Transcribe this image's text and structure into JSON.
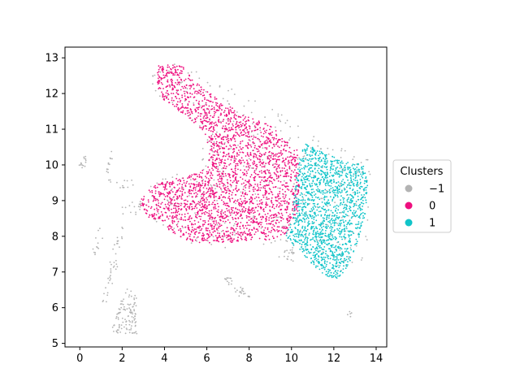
{
  "chart_data": {
    "type": "scatter",
    "title": "",
    "xlabel": "",
    "ylabel": "",
    "xlim": [
      -0.7,
      14.5
    ],
    "ylim": [
      4.9,
      13.3
    ],
    "xticks": [
      0,
      2,
      4,
      6,
      8,
      10,
      12,
      14
    ],
    "yticks": [
      5,
      6,
      7,
      8,
      9,
      10,
      11,
      12,
      13
    ],
    "grid": false,
    "legend": {
      "title": "Clusters",
      "placement": "center-right outside",
      "entries": [
        {
          "label": "−1",
          "color": "#b3b3b3"
        },
        {
          "label": "0",
          "color": "#ee0f7f"
        },
        {
          "label": "1",
          "color": "#10c4c9"
        }
      ]
    },
    "series": [
      {
        "name": "−1",
        "color": "#b3b3b3",
        "regions": [
          {
            "polygon": [
              [
                4.5,
                12.9
              ],
              [
                5.6,
                12.6
              ],
              [
                6.9,
                12.3
              ],
              [
                8.3,
                11.8
              ],
              [
                9.5,
                11.5
              ],
              [
                10.2,
                11.3
              ],
              [
                10.8,
                10.9
              ],
              [
                11.8,
                10.7
              ],
              [
                13,
                10.4
              ],
              [
                13.7,
                10.2
              ],
              [
                13.8,
                9.8
              ],
              [
                13.7,
                7.8
              ],
              [
                13.3,
                7.1
              ],
              [
                12.6,
                6.7
              ],
              [
                12.2,
                6.9
              ],
              [
                11.6,
                7.2
              ],
              [
                10.6,
                7.4
              ],
              [
                9.6,
                7.6
              ],
              [
                8.7,
                7.7
              ],
              [
                7.6,
                7.6
              ],
              [
                6.5,
                7.6
              ],
              [
                5.4,
                7.7
              ],
              [
                4.7,
                7.9
              ],
              [
                4.0,
                8.2
              ],
              [
                3.4,
                8.5
              ],
              [
                2.9,
                8.6
              ],
              [
                2.5,
                8.7
              ],
              [
                2.4,
                9.0
              ],
              [
                2.9,
                9.3
              ],
              [
                3.6,
                9.6
              ],
              [
                4.4,
                9.8
              ],
              [
                5.3,
                9.9
              ],
              [
                5.8,
                10.4
              ],
              [
                5.7,
                10.9
              ],
              [
                5.1,
                11.3
              ],
              [
                4.3,
                11.7
              ],
              [
                3.6,
                12.0
              ],
              [
                3.2,
                12.3
              ],
              [
                3.5,
                12.7
              ]
            ],
            "n": 420
          },
          {
            "polygon": [
              [
                -0.1,
                9.9
              ],
              [
                0.1,
                10.3
              ],
              [
                0.4,
                10.2
              ],
              [
                0.2,
                9.9
              ]
            ],
            "n": 14
          },
          {
            "polygon": [
              [
                1.2,
                9.7
              ],
              [
                1.5,
                10.4
              ],
              [
                1.6,
                10.2
              ],
              [
                1.4,
                9.7
              ]
            ],
            "n": 12
          },
          {
            "polygon": [
              [
                1.2,
                9.6
              ],
              [
                2.5,
                9.6
              ],
              [
                2.6,
                9.3
              ],
              [
                1.3,
                9.4
              ]
            ],
            "n": 14
          },
          {
            "polygon": [
              [
                2.0,
                9.0
              ],
              [
                3.0,
                9.0
              ],
              [
                3.0,
                8.5
              ],
              [
                2.0,
                8.6
              ]
            ],
            "n": 16
          },
          {
            "polygon": [
              [
                0.6,
                7.6
              ],
              [
                0.9,
                8.3
              ],
              [
                1.1,
                8.0
              ],
              [
                0.8,
                7.4
              ]
            ],
            "n": 12
          },
          {
            "polygon": [
              [
                1.0,
                6.1
              ],
              [
                1.6,
                7.8
              ],
              [
                2.2,
                8.6
              ],
              [
                2.3,
                8.4
              ],
              [
                1.8,
                7.2
              ],
              [
                1.2,
                5.9
              ]
            ],
            "n": 40
          },
          {
            "polygon": [
              [
                1.5,
                5.3
              ],
              [
                2.7,
                5.2
              ],
              [
                2.7,
                6.3
              ],
              [
                2.2,
                6.6
              ],
              [
                1.6,
                5.6
              ]
            ],
            "n": 110
          },
          {
            "polygon": [
              [
                6.7,
                6.9
              ],
              [
                7.5,
                6.3
              ],
              [
                8.1,
                6.3
              ],
              [
                7.3,
                6.8
              ]
            ],
            "n": 30
          },
          {
            "polygon": [
              [
                9.3,
                7.6
              ],
              [
                10.1,
                7.7
              ],
              [
                10.2,
                7.2
              ],
              [
                9.3,
                7.4
              ]
            ],
            "n": 18
          },
          {
            "polygon": [
              [
                12.6,
                5.8
              ],
              [
                12.9,
                6.0
              ],
              [
                12.9,
                5.8
              ],
              [
                12.7,
                5.7
              ]
            ],
            "n": 5
          }
        ]
      },
      {
        "name": "0",
        "color": "#ee0f7f",
        "regions": [
          {
            "polygon": [
              [
                3.6,
                12.8
              ],
              [
                4.8,
                12.8
              ],
              [
                5.5,
                12.3
              ],
              [
                6.6,
                11.8
              ],
              [
                7.8,
                11.4
              ],
              [
                9.0,
                11.1
              ],
              [
                9.8,
                10.7
              ],
              [
                10.3,
                10.4
              ],
              [
                10.4,
                9.6
              ],
              [
                10.3,
                8.7
              ],
              [
                9.8,
                8.1
              ],
              [
                9.0,
                7.9
              ],
              [
                8.0,
                7.9
              ],
              [
                6.9,
                7.8
              ],
              [
                5.8,
                7.8
              ],
              [
                5.0,
                7.9
              ],
              [
                4.4,
                8.1
              ],
              [
                3.8,
                8.3
              ],
              [
                3.3,
                8.5
              ],
              [
                2.8,
                8.9
              ],
              [
                3.0,
                9.2
              ],
              [
                3.5,
                9.4
              ],
              [
                4.2,
                9.6
              ],
              [
                5.1,
                9.7
              ],
              [
                5.7,
                9.8
              ],
              [
                6.1,
                10.2
              ],
              [
                6.0,
                10.7
              ],
              [
                5.6,
                11.1
              ],
              [
                4.9,
                11.4
              ],
              [
                4.1,
                11.7
              ],
              [
                3.7,
                12.1
              ]
            ],
            "n": 2600
          }
        ]
      },
      {
        "name": "1",
        "color": "#10c4c9",
        "regions": [
          {
            "polygon": [
              [
                10.6,
                10.6
              ],
              [
                11.4,
                10.4
              ],
              [
                12.4,
                10.1
              ],
              [
                13.4,
                10.0
              ],
              [
                13.6,
                9.5
              ],
              [
                13.5,
                8.6
              ],
              [
                13.1,
                7.8
              ],
              [
                12.7,
                7.2
              ],
              [
                12.2,
                6.8
              ],
              [
                11.6,
                6.9
              ],
              [
                11.0,
                7.2
              ],
              [
                10.4,
                7.6
              ],
              [
                10.0,
                7.8
              ],
              [
                9.7,
                8.0
              ],
              [
                10.0,
                8.4
              ],
              [
                10.1,
                8.9
              ],
              [
                10.2,
                9.6
              ],
              [
                10.4,
                10.2
              ]
            ],
            "n": 1500
          }
        ]
      }
    ]
  }
}
